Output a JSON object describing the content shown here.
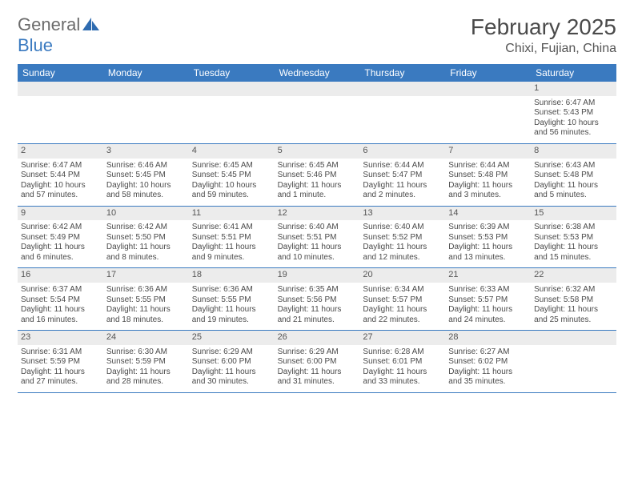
{
  "brand": {
    "part1": "General",
    "part2": "Blue"
  },
  "title": {
    "month": "February 2025",
    "location": "Chixi, Fujian, China"
  },
  "colors": {
    "accent": "#3a7ac0",
    "stripe": "#ececec",
    "text": "#4a4a4a",
    "bg": "#ffffff"
  },
  "weekdays": [
    "Sunday",
    "Monday",
    "Tuesday",
    "Wednesday",
    "Thursday",
    "Friday",
    "Saturday"
  ],
  "weeks": [
    [
      null,
      null,
      null,
      null,
      null,
      null,
      {
        "n": "1",
        "rise": "Sunrise: 6:47 AM",
        "set": "Sunset: 5:43 PM",
        "d1": "Daylight: 10 hours",
        "d2": "and 56 minutes."
      }
    ],
    [
      {
        "n": "2",
        "rise": "Sunrise: 6:47 AM",
        "set": "Sunset: 5:44 PM",
        "d1": "Daylight: 10 hours",
        "d2": "and 57 minutes."
      },
      {
        "n": "3",
        "rise": "Sunrise: 6:46 AM",
        "set": "Sunset: 5:45 PM",
        "d1": "Daylight: 10 hours",
        "d2": "and 58 minutes."
      },
      {
        "n": "4",
        "rise": "Sunrise: 6:45 AM",
        "set": "Sunset: 5:45 PM",
        "d1": "Daylight: 10 hours",
        "d2": "and 59 minutes."
      },
      {
        "n": "5",
        "rise": "Sunrise: 6:45 AM",
        "set": "Sunset: 5:46 PM",
        "d1": "Daylight: 11 hours",
        "d2": "and 1 minute."
      },
      {
        "n": "6",
        "rise": "Sunrise: 6:44 AM",
        "set": "Sunset: 5:47 PM",
        "d1": "Daylight: 11 hours",
        "d2": "and 2 minutes."
      },
      {
        "n": "7",
        "rise": "Sunrise: 6:44 AM",
        "set": "Sunset: 5:48 PM",
        "d1": "Daylight: 11 hours",
        "d2": "and 3 minutes."
      },
      {
        "n": "8",
        "rise": "Sunrise: 6:43 AM",
        "set": "Sunset: 5:48 PM",
        "d1": "Daylight: 11 hours",
        "d2": "and 5 minutes."
      }
    ],
    [
      {
        "n": "9",
        "rise": "Sunrise: 6:42 AM",
        "set": "Sunset: 5:49 PM",
        "d1": "Daylight: 11 hours",
        "d2": "and 6 minutes."
      },
      {
        "n": "10",
        "rise": "Sunrise: 6:42 AM",
        "set": "Sunset: 5:50 PM",
        "d1": "Daylight: 11 hours",
        "d2": "and 8 minutes."
      },
      {
        "n": "11",
        "rise": "Sunrise: 6:41 AM",
        "set": "Sunset: 5:51 PM",
        "d1": "Daylight: 11 hours",
        "d2": "and 9 minutes."
      },
      {
        "n": "12",
        "rise": "Sunrise: 6:40 AM",
        "set": "Sunset: 5:51 PM",
        "d1": "Daylight: 11 hours",
        "d2": "and 10 minutes."
      },
      {
        "n": "13",
        "rise": "Sunrise: 6:40 AM",
        "set": "Sunset: 5:52 PM",
        "d1": "Daylight: 11 hours",
        "d2": "and 12 minutes."
      },
      {
        "n": "14",
        "rise": "Sunrise: 6:39 AM",
        "set": "Sunset: 5:53 PM",
        "d1": "Daylight: 11 hours",
        "d2": "and 13 minutes."
      },
      {
        "n": "15",
        "rise": "Sunrise: 6:38 AM",
        "set": "Sunset: 5:53 PM",
        "d1": "Daylight: 11 hours",
        "d2": "and 15 minutes."
      }
    ],
    [
      {
        "n": "16",
        "rise": "Sunrise: 6:37 AM",
        "set": "Sunset: 5:54 PM",
        "d1": "Daylight: 11 hours",
        "d2": "and 16 minutes."
      },
      {
        "n": "17",
        "rise": "Sunrise: 6:36 AM",
        "set": "Sunset: 5:55 PM",
        "d1": "Daylight: 11 hours",
        "d2": "and 18 minutes."
      },
      {
        "n": "18",
        "rise": "Sunrise: 6:36 AM",
        "set": "Sunset: 5:55 PM",
        "d1": "Daylight: 11 hours",
        "d2": "and 19 minutes."
      },
      {
        "n": "19",
        "rise": "Sunrise: 6:35 AM",
        "set": "Sunset: 5:56 PM",
        "d1": "Daylight: 11 hours",
        "d2": "and 21 minutes."
      },
      {
        "n": "20",
        "rise": "Sunrise: 6:34 AM",
        "set": "Sunset: 5:57 PM",
        "d1": "Daylight: 11 hours",
        "d2": "and 22 minutes."
      },
      {
        "n": "21",
        "rise": "Sunrise: 6:33 AM",
        "set": "Sunset: 5:57 PM",
        "d1": "Daylight: 11 hours",
        "d2": "and 24 minutes."
      },
      {
        "n": "22",
        "rise": "Sunrise: 6:32 AM",
        "set": "Sunset: 5:58 PM",
        "d1": "Daylight: 11 hours",
        "d2": "and 25 minutes."
      }
    ],
    [
      {
        "n": "23",
        "rise": "Sunrise: 6:31 AM",
        "set": "Sunset: 5:59 PM",
        "d1": "Daylight: 11 hours",
        "d2": "and 27 minutes."
      },
      {
        "n": "24",
        "rise": "Sunrise: 6:30 AM",
        "set": "Sunset: 5:59 PM",
        "d1": "Daylight: 11 hours",
        "d2": "and 28 minutes."
      },
      {
        "n": "25",
        "rise": "Sunrise: 6:29 AM",
        "set": "Sunset: 6:00 PM",
        "d1": "Daylight: 11 hours",
        "d2": "and 30 minutes."
      },
      {
        "n": "26",
        "rise": "Sunrise: 6:29 AM",
        "set": "Sunset: 6:00 PM",
        "d1": "Daylight: 11 hours",
        "d2": "and 31 minutes."
      },
      {
        "n": "27",
        "rise": "Sunrise: 6:28 AM",
        "set": "Sunset: 6:01 PM",
        "d1": "Daylight: 11 hours",
        "d2": "and 33 minutes."
      },
      {
        "n": "28",
        "rise": "Sunrise: 6:27 AM",
        "set": "Sunset: 6:02 PM",
        "d1": "Daylight: 11 hours",
        "d2": "and 35 minutes."
      },
      null
    ]
  ]
}
